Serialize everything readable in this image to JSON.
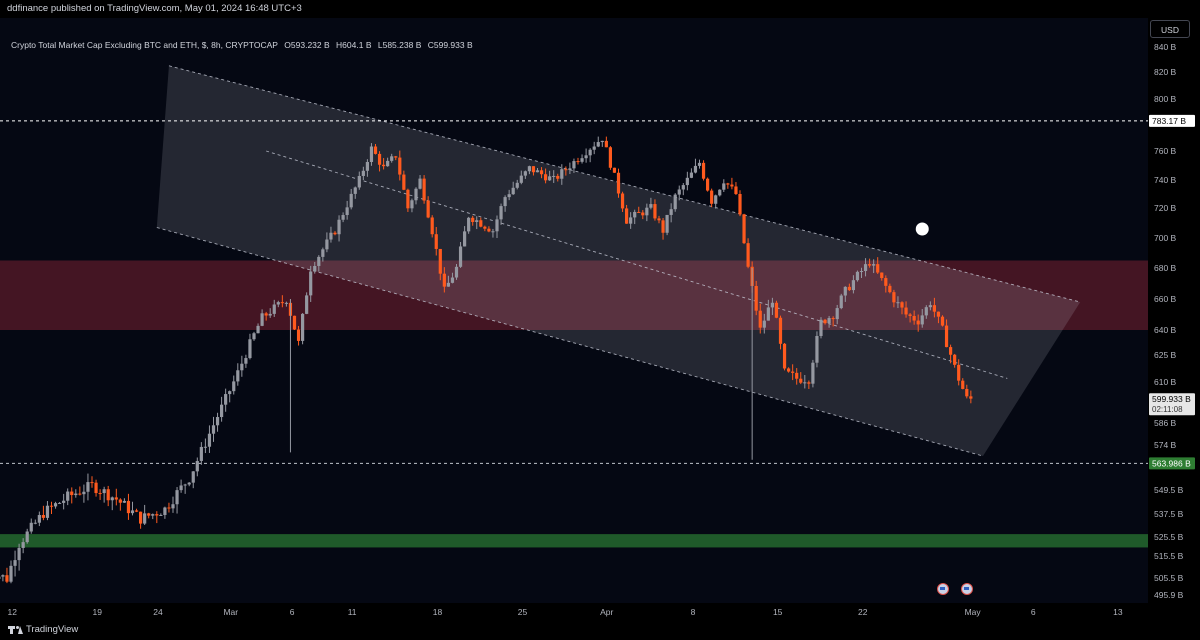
{
  "header": {
    "publisher_text": "ddfinance published on TradingView.com, May 01, 2024 16:48 UTC+3"
  },
  "legend": {
    "symbol": "Crypto Total Market Cap Excluding BTC and ETH, $, 8h, CRYPTOCAP",
    "open": "O593.232 B",
    "high": "H604.1 B",
    "low": "L585.238 B",
    "close": "C599.933 B"
  },
  "axis": {
    "currency_button": "USD"
  },
  "footer": {
    "logo_text": "TradingView"
  },
  "events": [
    "us-flag-icon",
    "us-flag-icon"
  ],
  "colors": {
    "up": "#9598a1",
    "down": "#ff5a1e",
    "resistance_zone": "#5a1a2a",
    "support_zone": "#1f5a2a",
    "background": "#050813"
  },
  "chart_data": {
    "type": "candlestick",
    "title": "Crypto Total Market Cap Excluding BTC and ETH",
    "interval": "8h",
    "unit": "B USD",
    "y_ticks": [
      "840 B",
      "820 B",
      "800 B",
      "760 B",
      "740 B",
      "720 B",
      "700 B",
      "680 B",
      "660 B",
      "640 B",
      "625 B",
      "610 B",
      "586 B",
      "574 B",
      "549.5 B",
      "537.5 B",
      "525.5 B",
      "515.5 B",
      "505.5 B",
      "495.9 B"
    ],
    "y_tick_values": [
      840,
      820,
      800,
      760,
      740,
      720,
      700,
      680,
      660,
      640,
      625,
      610,
      586,
      574,
      549.5,
      537.5,
      525.5,
      515.5,
      505.5,
      495.9
    ],
    "x_ticks": [
      "12",
      "19",
      "24",
      "Mar",
      "6",
      "11",
      "18",
      "25",
      "Apr",
      "8",
      "15",
      "22",
      "May",
      "6",
      "13"
    ],
    "x_tick_values": [
      "2024-02-12",
      "2024-02-19",
      "2024-02-24",
      "2024-03-01",
      "2024-03-06",
      "2024-03-11",
      "2024-03-18",
      "2024-03-25",
      "2024-04-01",
      "2024-04-08",
      "2024-04-15",
      "2024-04-22",
      "2024-05-01",
      "2024-05-06",
      "2024-05-13"
    ],
    "price_labels": [
      {
        "label": "783.17 B",
        "value": 783.17,
        "style": "resistance"
      },
      {
        "label": "599.933 B",
        "value": 599.933,
        "style": "last",
        "countdown": "02:11:08"
      },
      {
        "label": "563.986 B",
        "value": 563.986,
        "style": "support"
      }
    ],
    "zones": [
      {
        "name": "resistance zone",
        "from": 640,
        "to": 685
      },
      {
        "name": "support zone",
        "from": 520,
        "to": 527
      }
    ],
    "channel": {
      "upper": [
        [
          "2024-02-25",
          825
        ],
        [
          "2024-05-10",
          658
        ]
      ],
      "lower": [
        [
          "2024-02-24",
          707
        ],
        [
          "2024-05-02",
          568
        ]
      ],
      "mid": [
        [
          "2024-03-04",
          760
        ],
        [
          "2024-05-04",
          612
        ]
      ]
    },
    "trend_path": [
      [
        "2024-02-10",
        510
      ],
      [
        "2024-02-12",
        505
      ],
      [
        "2024-02-13",
        522
      ],
      [
        "2024-02-15",
        538
      ],
      [
        "2024-02-17",
        546
      ],
      [
        "2024-02-19",
        552
      ],
      [
        "2024-02-21",
        545
      ],
      [
        "2024-02-23",
        535
      ],
      [
        "2024-02-25",
        540
      ],
      [
        "2024-02-27",
        556
      ],
      [
        "2024-02-29",
        585
      ],
      [
        "2024-03-02",
        615
      ],
      [
        "2024-03-04",
        648
      ],
      [
        "2024-03-06",
        660
      ],
      [
        "2024-03-07",
        632
      ],
      [
        "2024-03-08",
        680
      ],
      [
        "2024-03-10",
        705
      ],
      [
        "2024-03-12",
        740
      ],
      [
        "2024-03-13",
        762
      ],
      [
        "2024-03-14",
        748
      ],
      [
        "2024-03-15",
        757
      ],
      [
        "2024-03-16",
        720
      ],
      [
        "2024-03-17",
        740
      ],
      [
        "2024-03-18",
        705
      ],
      [
        "2024-03-19",
        665
      ],
      [
        "2024-03-20",
        680
      ],
      [
        "2024-03-21",
        715
      ],
      [
        "2024-03-23",
        705
      ],
      [
        "2024-03-24",
        728
      ],
      [
        "2024-03-26",
        748
      ],
      [
        "2024-03-28",
        740
      ],
      [
        "2024-03-30",
        755
      ],
      [
        "2024-04-01",
        770
      ],
      [
        "2024-04-02",
        742
      ],
      [
        "2024-04-03",
        712
      ],
      [
        "2024-04-05",
        720
      ],
      [
        "2024-04-06",
        705
      ],
      [
        "2024-04-07",
        728
      ],
      [
        "2024-04-09",
        752
      ],
      [
        "2024-04-10",
        725
      ],
      [
        "2024-04-11",
        740
      ],
      [
        "2024-04-12",
        730
      ],
      [
        "2024-04-13",
        680
      ],
      [
        "2024-04-14",
        640
      ],
      [
        "2024-04-15",
        660
      ],
      [
        "2024-04-16",
        615
      ],
      [
        "2024-04-17",
        612
      ],
      [
        "2024-04-18",
        612
      ],
      [
        "2024-04-19",
        645
      ],
      [
        "2024-04-20",
        650
      ],
      [
        "2024-04-21",
        665
      ],
      [
        "2024-04-22",
        675
      ],
      [
        "2024-04-23",
        684
      ],
      [
        "2024-04-24",
        672
      ],
      [
        "2024-04-25",
        660
      ],
      [
        "2024-04-26",
        650
      ],
      [
        "2024-04-27",
        646
      ],
      [
        "2024-04-28",
        658
      ],
      [
        "2024-04-29",
        640
      ],
      [
        "2024-04-30",
        618
      ],
      [
        "2024-05-01",
        600
      ]
    ],
    "marker": {
      "date": "2024-04-27",
      "value": 706
    },
    "last_price": 599.933,
    "countdown": "02:11:08"
  }
}
